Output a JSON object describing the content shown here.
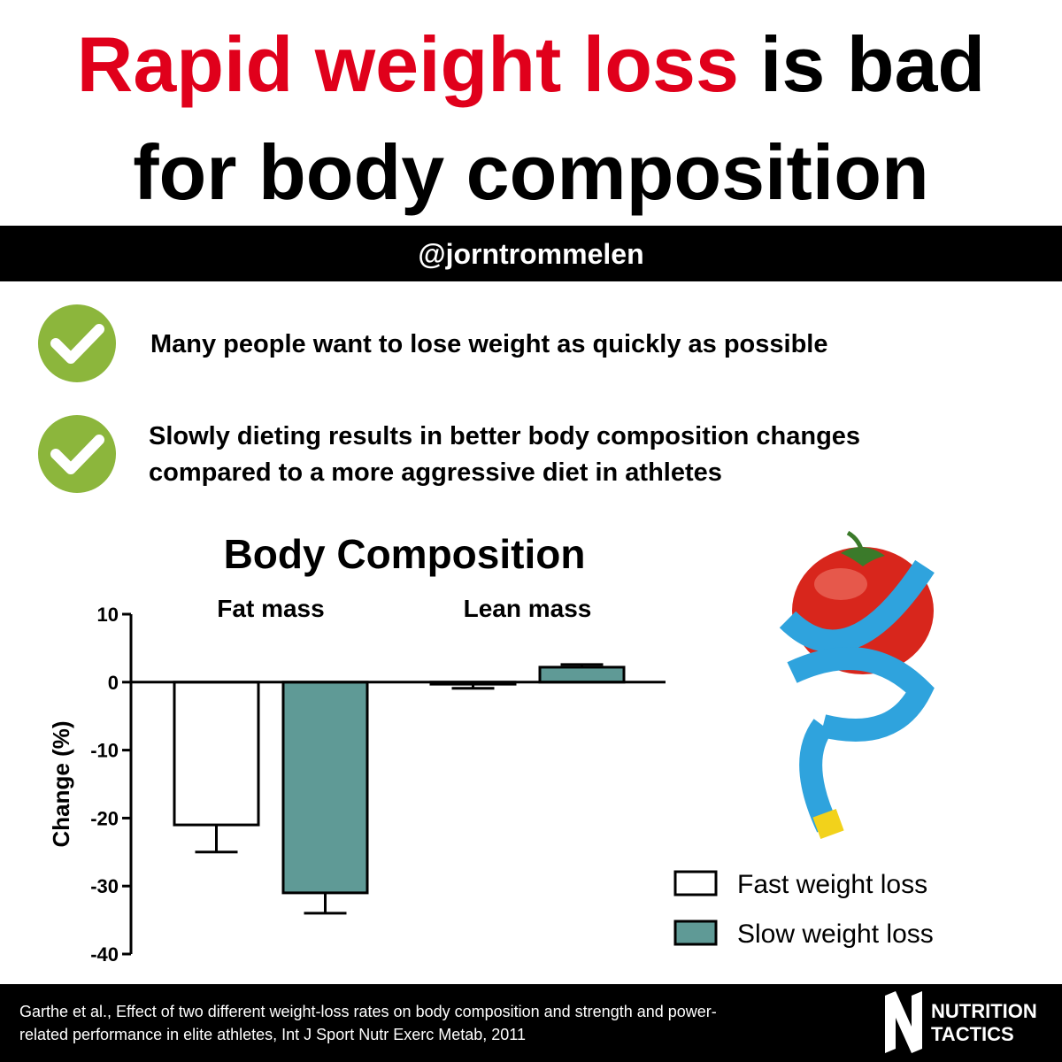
{
  "header": {
    "title_red": "Rapid weight loss",
    "title_black": "is bad",
    "title_line2": "for body composition",
    "handle": "@jorntrommelen"
  },
  "bullets": [
    {
      "lines": [
        "Many people want to lose weight as quickly as possible"
      ]
    },
    {
      "lines": [
        "Slowly dieting results in better body composition changes",
        "compared to a more aggressive diet in athletes"
      ]
    }
  ],
  "chart_data": {
    "type": "bar",
    "title": "Body Composition",
    "ylabel": "Change (%)",
    "categories": [
      "Fat mass",
      "Lean mass"
    ],
    "series": [
      {
        "name": "Fast weight loss",
        "color": "#ffffff",
        "values": [
          -21,
          -0.3
        ],
        "errors": [
          4,
          0.6
        ]
      },
      {
        "name": "Slow weight loss",
        "color": "#5f9a96",
        "values": [
          -31,
          2.2
        ],
        "errors": [
          3,
          0.4
        ]
      }
    ],
    "ylim": [
      -40,
      10
    ],
    "yticks": [
      -40,
      -30,
      -20,
      -10,
      0,
      10
    ],
    "legend": "lower right"
  },
  "footer": {
    "citation": [
      "Garthe et al., Effect of two different weight-loss rates on body composition and strength and power-",
      "related performance in elite athletes, Int J Sport Nutr Exerc Metab, 2011"
    ],
    "logo": [
      "NUTRITION",
      "TACTICS"
    ]
  }
}
